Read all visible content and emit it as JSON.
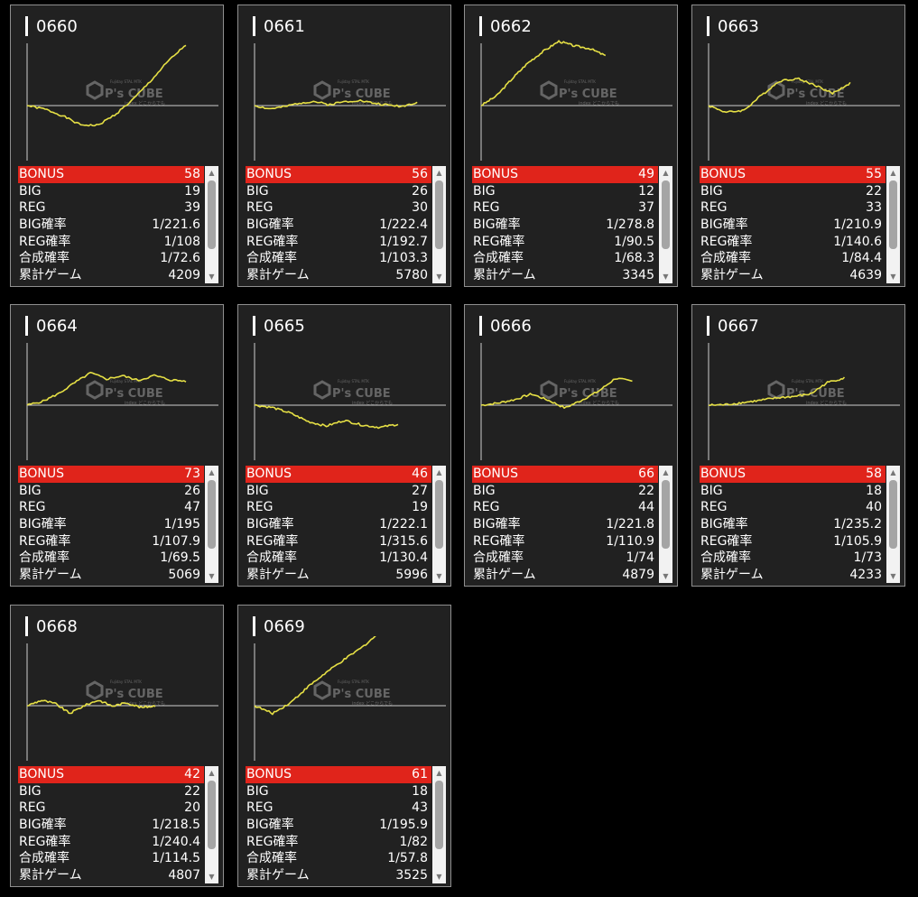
{
  "stat_labels": {
    "bonus": "BONUS",
    "big": "BIG",
    "reg": "REG",
    "big_rate": "BIG確率",
    "reg_rate": "REG確率",
    "total_rate": "合成確率",
    "games": "累計ゲーム"
  },
  "watermark": {
    "brand": "P's CUBE",
    "small_top": "Fujiday STAL MTK",
    "small_bottom": "index どこからでも"
  },
  "colors": {
    "background": "#000000",
    "card": "#212121",
    "bonus_bar": "#e0241b",
    "graph_line": "#e6e045"
  },
  "machines": [
    {
      "id": "0660",
      "bonus": "58",
      "big": "19",
      "reg": "39",
      "big_rate": "1/221.6",
      "reg_rate": "1/108",
      "total_rate": "1/72.6",
      "games": "4209",
      "chart_data": {
        "type": "line",
        "series": [
          {
            "values": [
              0,
              -150,
              -430,
              -820,
              -850,
              -380,
              260,
              1050,
              1900,
              2600
            ]
          }
        ]
      }
    },
    {
      "id": "0661",
      "bonus": "56",
      "big": "26",
      "reg": "30",
      "big_rate": "1/222.4",
      "reg_rate": "1/192.7",
      "total_rate": "1/103.3",
      "games": "5780",
      "chart_data": {
        "type": "line",
        "series": [
          {
            "values": [
              0,
              -140,
              -60,
              110,
              180,
              40,
              160,
              230,
              110,
              20,
              -30,
              150
            ]
          }
        ]
      }
    },
    {
      "id": "0662",
      "bonus": "49",
      "big": "12",
      "reg": "37",
      "big_rate": "1/278.8",
      "reg_rate": "1/90.5",
      "total_rate": "1/68.3",
      "games": "3345",
      "chart_data": {
        "type": "line",
        "series": [
          {
            "values": [
              0,
              420,
              1150,
              1820,
              2320,
              2750,
              2550,
              2440,
              2130
            ]
          }
        ]
      }
    },
    {
      "id": "0663",
      "bonus": "55",
      "big": "22",
      "reg": "33",
      "big_rate": "1/210.9",
      "reg_rate": "1/140.6",
      "total_rate": "1/84.4",
      "games": "4639",
      "chart_data": {
        "type": "line",
        "series": [
          {
            "values": [
              0,
              -290,
              -200,
              450,
              1050,
              1160,
              880,
              520,
              960
            ]
          }
        ]
      }
    },
    {
      "id": "0664",
      "bonus": "73",
      "big": "26",
      "reg": "47",
      "big_rate": "1/195",
      "reg_rate": "1/107.9",
      "total_rate": "1/69.5",
      "games": "5069",
      "chart_data": {
        "type": "line",
        "series": [
          {
            "values": [
              0,
              170,
              500,
              960,
              1380,
              1120,
              1260,
              1060,
              1270,
              1080,
              1030
            ]
          }
        ]
      }
    },
    {
      "id": "0665",
      "bonus": "46",
      "big": "27",
      "reg": "19",
      "big_rate": "1/222.1",
      "reg_rate": "1/315.6",
      "total_rate": "1/130.4",
      "games": "5996",
      "chart_data": {
        "type": "line",
        "series": [
          {
            "values": [
              0,
              -100,
              -340,
              -700,
              -890,
              -650,
              -850,
              -950,
              -810
            ]
          }
        ]
      }
    },
    {
      "id": "0666",
      "bonus": "66",
      "big": "22",
      "reg": "44",
      "big_rate": "1/221.8",
      "reg_rate": "1/110.9",
      "total_rate": "1/74",
      "games": "4879",
      "chart_data": {
        "type": "line",
        "series": [
          {
            "values": [
              0,
              90,
              240,
              480,
              210,
              -120,
              220,
              600,
              1150,
              1020
            ]
          }
        ]
      }
    },
    {
      "id": "0667",
      "bonus": "58",
      "big": "18",
      "reg": "40",
      "big_rate": "1/235.2",
      "reg_rate": "1/105.9",
      "total_rate": "1/73",
      "games": "4233",
      "chart_data": {
        "type": "line",
        "series": [
          {
            "values": [
              0,
              20,
              110,
              200,
              310,
              370,
              480,
              970,
              1170
            ]
          }
        ]
      }
    },
    {
      "id": "0668",
      "bonus": "42",
      "big": "22",
      "reg": "20",
      "big_rate": "1/218.5",
      "reg_rate": "1/240.4",
      "total_rate": "1/114.5",
      "games": "4807",
      "chart_data": {
        "type": "line",
        "series": [
          {
            "values": [
              0,
              230,
              80,
              -330,
              0,
              240,
              -20,
              130,
              -80,
              0
            ]
          }
        ]
      }
    },
    {
      "id": "0669",
      "bonus": "61",
      "big": "18",
      "reg": "43",
      "big_rate": "1/195.9",
      "reg_rate": "1/82",
      "total_rate": "1/57.8",
      "games": "3525",
      "chart_data": {
        "type": "line",
        "series": [
          {
            "values": [
              0,
              -330,
              130,
              820,
              1420,
              1970,
              2500,
              3150,
              3700
            ]
          }
        ]
      }
    }
  ]
}
